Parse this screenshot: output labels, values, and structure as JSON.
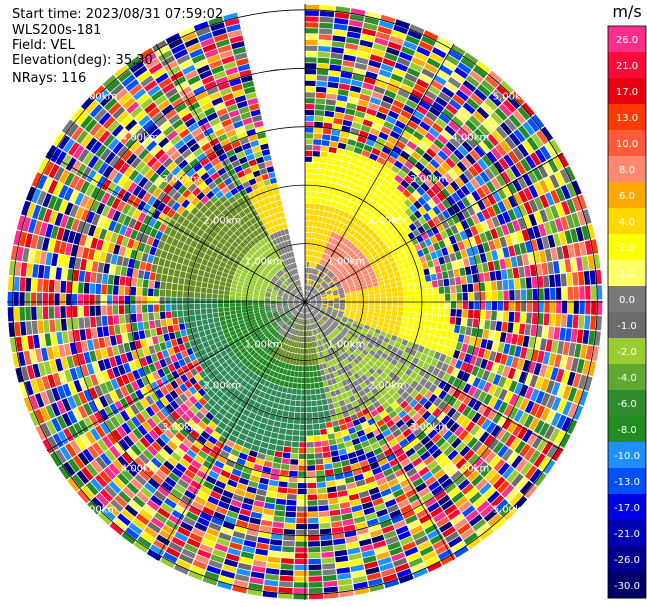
{
  "header": {
    "start_time": "Start time: 2023/08/31 07:59:02",
    "instrument": "WLS200s-181",
    "field": "Field: VEL",
    "elevation": "Elevation(deg): 35.30",
    "nrays": "NRays: 116"
  },
  "chart_data": {
    "type": "heatmap",
    "subtype": "polar-ppi",
    "field": "VEL",
    "units": "m/s",
    "elevation_deg": 35.3,
    "n_rays": 116,
    "range_rings_km": [
      1.0,
      2.0,
      3.0,
      4.0,
      5.0
    ],
    "range_ring_labels": [
      "1.00km",
      "2.00km",
      "3.00km",
      "4.00km",
      "5.00km"
    ],
    "gap_azimuth_deg": [
      -13,
      0
    ],
    "colorbar": {
      "label": "m/s",
      "ticks": [
        "26.0",
        "21.0",
        "17.0",
        "13.0",
        "10.0",
        "8.0",
        "6.0",
        "4.0",
        "2.0",
        "1.0",
        "0.0",
        "-1.0",
        "-2.0",
        "-4.0",
        "-6.0",
        "-8.0",
        "-10.0",
        "-13.0",
        "-17.0",
        "-21.0",
        "-26.0",
        "-30.0"
      ],
      "colors": [
        "#ff2d8c",
        "#ff0a3c",
        "#e8000f",
        "#ff3a00",
        "#ff5a3a",
        "#ff8870",
        "#ffa800",
        "#ffd800",
        "#ffff00",
        "#ffff66",
        "#7a7a7a",
        "#6b6b6b",
        "#9acd32",
        "#5fa832",
        "#2e8b2e",
        "#228b22",
        "#1e90ff",
        "#0050ff",
        "#0000e6",
        "#0000b4",
        "#000090",
        "#00006b"
      ]
    },
    "pattern": {
      "near_field_color": "#808080",
      "left_near": "#9acd32",
      "left_mid": "#228b22",
      "lower_mid": "#6b8e23",
      "upper_mid": "#ffd800",
      "right_mid": "#ffff00",
      "upper_right_inner": "#ff8870",
      "far_field": "noise"
    }
  }
}
